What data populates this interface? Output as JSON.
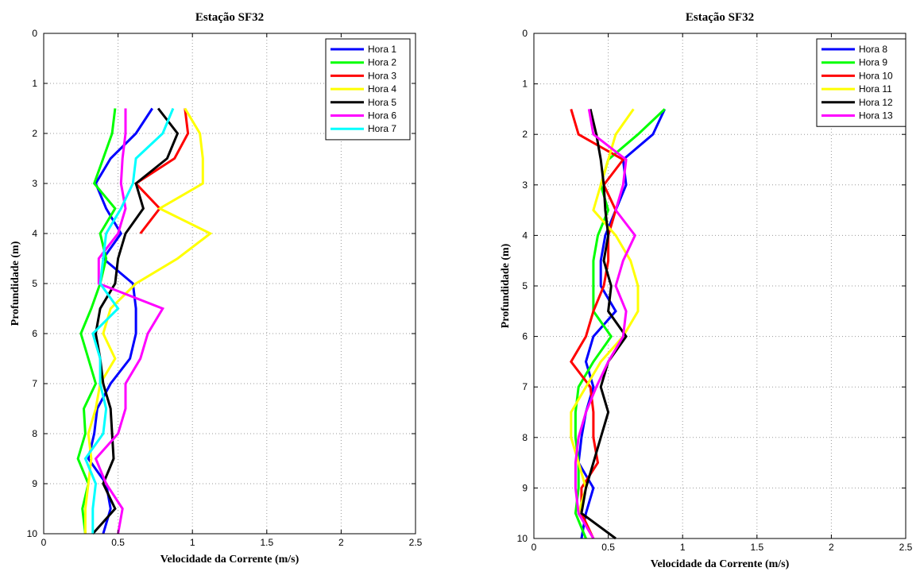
{
  "chart_data": [
    {
      "type": "line",
      "title": "Estação SF32",
      "xlabel": "Velocidade da Corrente (m/s)",
      "ylabel": "Profundidade (m)",
      "xlim": [
        0,
        2.5
      ],
      "ylim": [
        0,
        10
      ],
      "y_reversed": true,
      "grid": true,
      "legend_position": "top-right",
      "xticks": [
        "0",
        "0.5",
        "1",
        "1.5",
        "2",
        "2.5"
      ],
      "yticks": [
        "0",
        "1",
        "2",
        "3",
        "4",
        "5",
        "6",
        "7",
        "8",
        "9",
        "10"
      ],
      "series": [
        {
          "name": "Hora 1",
          "color": "#0000ff",
          "points": [
            [
              0.73,
              1.5
            ],
            [
              0.62,
              2.0
            ],
            [
              0.45,
              2.5
            ],
            [
              0.35,
              3.0
            ],
            [
              0.42,
              3.5
            ],
            [
              0.52,
              4.0
            ],
            [
              0.4,
              4.5
            ],
            [
              0.6,
              5.0
            ],
            [
              0.62,
              5.5
            ],
            [
              0.62,
              6.0
            ],
            [
              0.58,
              6.5
            ],
            [
              0.45,
              7.0
            ],
            [
              0.36,
              7.5
            ],
            [
              0.34,
              8.0
            ],
            [
              0.3,
              8.5
            ],
            [
              0.42,
              9.0
            ],
            [
              0.45,
              9.5
            ],
            [
              0.4,
              10.0
            ]
          ]
        },
        {
          "name": "Hora 2",
          "color": "#00ff00",
          "points": [
            [
              0.48,
              1.5
            ],
            [
              0.46,
              2.0
            ],
            [
              0.4,
              2.5
            ],
            [
              0.34,
              3.0
            ],
            [
              0.48,
              3.5
            ],
            [
              0.38,
              4.0
            ],
            [
              0.42,
              4.5
            ],
            [
              0.38,
              5.0
            ],
            [
              0.32,
              5.5
            ],
            [
              0.25,
              6.0
            ],
            [
              0.3,
              6.5
            ],
            [
              0.35,
              7.0
            ],
            [
              0.27,
              7.5
            ],
            [
              0.28,
              8.0
            ],
            [
              0.23,
              8.5
            ],
            [
              0.3,
              9.0
            ],
            [
              0.26,
              9.5
            ],
            [
              0.28,
              10.0
            ]
          ]
        },
        {
          "name": "Hora 3",
          "color": "#ff0000",
          "points": [
            [
              0.95,
              1.5
            ],
            [
              0.97,
              2.0
            ],
            [
              0.88,
              2.5
            ],
            [
              0.62,
              3.0
            ],
            [
              0.78,
              3.5
            ],
            [
              0.65,
              4.0
            ]
          ]
        },
        {
          "name": "Hora 4",
          "color": "#ffff00",
          "points": [
            [
              0.95,
              1.5
            ],
            [
              1.05,
              2.0
            ],
            [
              1.07,
              2.5
            ],
            [
              1.07,
              3.0
            ],
            [
              0.78,
              3.5
            ],
            [
              1.12,
              4.0
            ],
            [
              0.9,
              4.5
            ],
            [
              0.62,
              5.0
            ],
            [
              0.45,
              5.5
            ],
            [
              0.4,
              6.0
            ],
            [
              0.48,
              6.5
            ],
            [
              0.38,
              7.0
            ],
            [
              0.35,
              7.5
            ],
            [
              0.3,
              8.0
            ],
            [
              0.32,
              8.5
            ],
            [
              0.3,
              9.0
            ],
            [
              0.28,
              9.5
            ],
            [
              0.28,
              10.0
            ]
          ]
        },
        {
          "name": "Hora 5",
          "color": "#000000",
          "points": [
            [
              0.77,
              1.5
            ],
            [
              0.9,
              2.0
            ],
            [
              0.83,
              2.5
            ],
            [
              0.62,
              3.0
            ],
            [
              0.67,
              3.5
            ],
            [
              0.55,
              4.0
            ],
            [
              0.5,
              4.5
            ],
            [
              0.48,
              5.0
            ],
            [
              0.38,
              5.5
            ],
            [
              0.35,
              6.0
            ],
            [
              0.38,
              6.5
            ],
            [
              0.4,
              7.0
            ],
            [
              0.45,
              7.5
            ],
            [
              0.46,
              8.0
            ],
            [
              0.47,
              8.5
            ],
            [
              0.4,
              9.0
            ],
            [
              0.48,
              9.5
            ],
            [
              0.33,
              10.0
            ]
          ]
        },
        {
          "name": "Hora 6",
          "color": "#ff00ff",
          "points": [
            [
              0.55,
              1.5
            ],
            [
              0.55,
              2.0
            ],
            [
              0.53,
              2.5
            ],
            [
              0.52,
              3.0
            ],
            [
              0.55,
              3.5
            ],
            [
              0.5,
              4.0
            ],
            [
              0.37,
              4.5
            ],
            [
              0.37,
              5.0
            ],
            [
              0.8,
              5.5
            ],
            [
              0.7,
              6.0
            ],
            [
              0.65,
              6.5
            ],
            [
              0.55,
              7.0
            ],
            [
              0.55,
              7.5
            ],
            [
              0.5,
              8.0
            ],
            [
              0.35,
              8.5
            ],
            [
              0.42,
              9.0
            ],
            [
              0.53,
              9.5
            ],
            [
              0.5,
              10.0
            ]
          ]
        },
        {
          "name": "Hora 7",
          "color": "#00ffff",
          "points": [
            [
              0.87,
              1.5
            ],
            [
              0.8,
              2.0
            ],
            [
              0.62,
              2.5
            ],
            [
              0.6,
              3.0
            ],
            [
              0.52,
              3.5
            ],
            [
              0.42,
              4.0
            ],
            [
              0.4,
              4.5
            ],
            [
              0.38,
              5.0
            ],
            [
              0.5,
              5.5
            ],
            [
              0.33,
              6.0
            ],
            [
              0.38,
              6.5
            ],
            [
              0.38,
              7.0
            ],
            [
              0.42,
              7.5
            ],
            [
              0.4,
              8.0
            ],
            [
              0.28,
              8.5
            ],
            [
              0.35,
              9.0
            ],
            [
              0.33,
              9.5
            ],
            [
              0.33,
              10.0
            ]
          ]
        }
      ]
    },
    {
      "type": "line",
      "title": "Estação SF32",
      "xlabel": "Velocidade da Corrente (m/s)",
      "ylabel": "Profundidade (m)",
      "xlim": [
        0,
        2.5
      ],
      "ylim": [
        0,
        10
      ],
      "y_reversed": true,
      "grid": true,
      "legend_position": "top-right",
      "xticks": [
        "0",
        "0.5",
        "1",
        "1.5",
        "2",
        "2.5"
      ],
      "yticks": [
        "0",
        "1",
        "2",
        "3",
        "4",
        "5",
        "6",
        "7",
        "8",
        "9",
        "10"
      ],
      "series": [
        {
          "name": "Hora 8",
          "color": "#0000ff",
          "points": [
            [
              0.88,
              1.5
            ],
            [
              0.8,
              2.0
            ],
            [
              0.6,
              2.5
            ],
            [
              0.62,
              3.0
            ],
            [
              0.55,
              3.5
            ],
            [
              0.48,
              4.0
            ],
            [
              0.45,
              4.5
            ],
            [
              0.45,
              5.0
            ],
            [
              0.55,
              5.5
            ],
            [
              0.4,
              6.0
            ],
            [
              0.35,
              6.5
            ],
            [
              0.4,
              7.0
            ],
            [
              0.35,
              7.5
            ],
            [
              0.32,
              8.0
            ],
            [
              0.3,
              8.5
            ],
            [
              0.4,
              9.0
            ],
            [
              0.35,
              9.5
            ],
            [
              0.32,
              10.0
            ]
          ]
        },
        {
          "name": "Hora 9",
          "color": "#00ff00",
          "points": [
            [
              0.88,
              1.5
            ],
            [
              0.7,
              2.0
            ],
            [
              0.5,
              2.5
            ],
            [
              0.45,
              3.0
            ],
            [
              0.5,
              3.5
            ],
            [
              0.43,
              4.0
            ],
            [
              0.4,
              4.5
            ],
            [
              0.4,
              5.0
            ],
            [
              0.4,
              5.5
            ],
            [
              0.52,
              6.0
            ],
            [
              0.4,
              6.5
            ],
            [
              0.3,
              7.0
            ],
            [
              0.28,
              7.5
            ],
            [
              0.28,
              8.0
            ],
            [
              0.3,
              8.5
            ],
            [
              0.3,
              9.0
            ],
            [
              0.28,
              9.5
            ],
            [
              0.35,
              10.0
            ]
          ]
        },
        {
          "name": "Hora 10",
          "color": "#ff0000",
          "points": [
            [
              0.25,
              1.5
            ],
            [
              0.3,
              2.0
            ],
            [
              0.6,
              2.5
            ],
            [
              0.47,
              3.0
            ],
            [
              0.55,
              3.5
            ],
            [
              0.5,
              4.0
            ],
            [
              0.5,
              4.5
            ],
            [
              0.47,
              5.0
            ],
            [
              0.4,
              5.5
            ],
            [
              0.35,
              6.0
            ],
            [
              0.25,
              6.5
            ],
            [
              0.38,
              7.0
            ],
            [
              0.4,
              7.5
            ],
            [
              0.4,
              8.0
            ],
            [
              0.43,
              8.5
            ],
            [
              0.32,
              9.0
            ],
            [
              0.32,
              9.5
            ],
            [
              0.4,
              10.0
            ]
          ]
        },
        {
          "name": "Hora 11",
          "color": "#ffff00",
          "points": [
            [
              0.67,
              1.5
            ],
            [
              0.55,
              2.0
            ],
            [
              0.5,
              2.5
            ],
            [
              0.45,
              3.0
            ],
            [
              0.4,
              3.5
            ],
            [
              0.55,
              4.0
            ],
            [
              0.65,
              4.5
            ],
            [
              0.7,
              5.0
            ],
            [
              0.7,
              5.5
            ],
            [
              0.6,
              6.0
            ],
            [
              0.45,
              6.5
            ],
            [
              0.35,
              7.0
            ],
            [
              0.25,
              7.5
            ],
            [
              0.25,
              8.0
            ],
            [
              0.3,
              8.5
            ],
            [
              0.35,
              9.0
            ],
            [
              0.3,
              9.5
            ],
            [
              0.4,
              10.0
            ]
          ]
        },
        {
          "name": "Hora 12",
          "color": "#000000",
          "points": [
            [
              0.38,
              1.5
            ],
            [
              0.42,
              2.0
            ],
            [
              0.45,
              2.5
            ],
            [
              0.47,
              3.0
            ],
            [
              0.48,
              3.5
            ],
            [
              0.5,
              4.0
            ],
            [
              0.47,
              4.5
            ],
            [
              0.52,
              5.0
            ],
            [
              0.5,
              5.5
            ],
            [
              0.62,
              6.0
            ],
            [
              0.5,
              6.5
            ],
            [
              0.45,
              7.0
            ],
            [
              0.5,
              7.5
            ],
            [
              0.45,
              8.0
            ],
            [
              0.4,
              8.5
            ],
            [
              0.35,
              9.0
            ],
            [
              0.32,
              9.5
            ],
            [
              0.55,
              10.0
            ]
          ]
        },
        {
          "name": "Hora 13",
          "color": "#ff00ff",
          "points": [
            [
              0.37,
              1.5
            ],
            [
              0.4,
              2.0
            ],
            [
              0.62,
              2.5
            ],
            [
              0.6,
              3.0
            ],
            [
              0.55,
              3.5
            ],
            [
              0.68,
              4.0
            ],
            [
              0.6,
              4.5
            ],
            [
              0.55,
              5.0
            ],
            [
              0.62,
              5.5
            ],
            [
              0.6,
              6.0
            ],
            [
              0.5,
              6.5
            ],
            [
              0.42,
              7.0
            ],
            [
              0.35,
              7.5
            ],
            [
              0.3,
              8.0
            ],
            [
              0.28,
              8.5
            ],
            [
              0.28,
              9.0
            ],
            [
              0.3,
              9.5
            ],
            [
              0.4,
              10.0
            ]
          ]
        }
      ]
    }
  ]
}
